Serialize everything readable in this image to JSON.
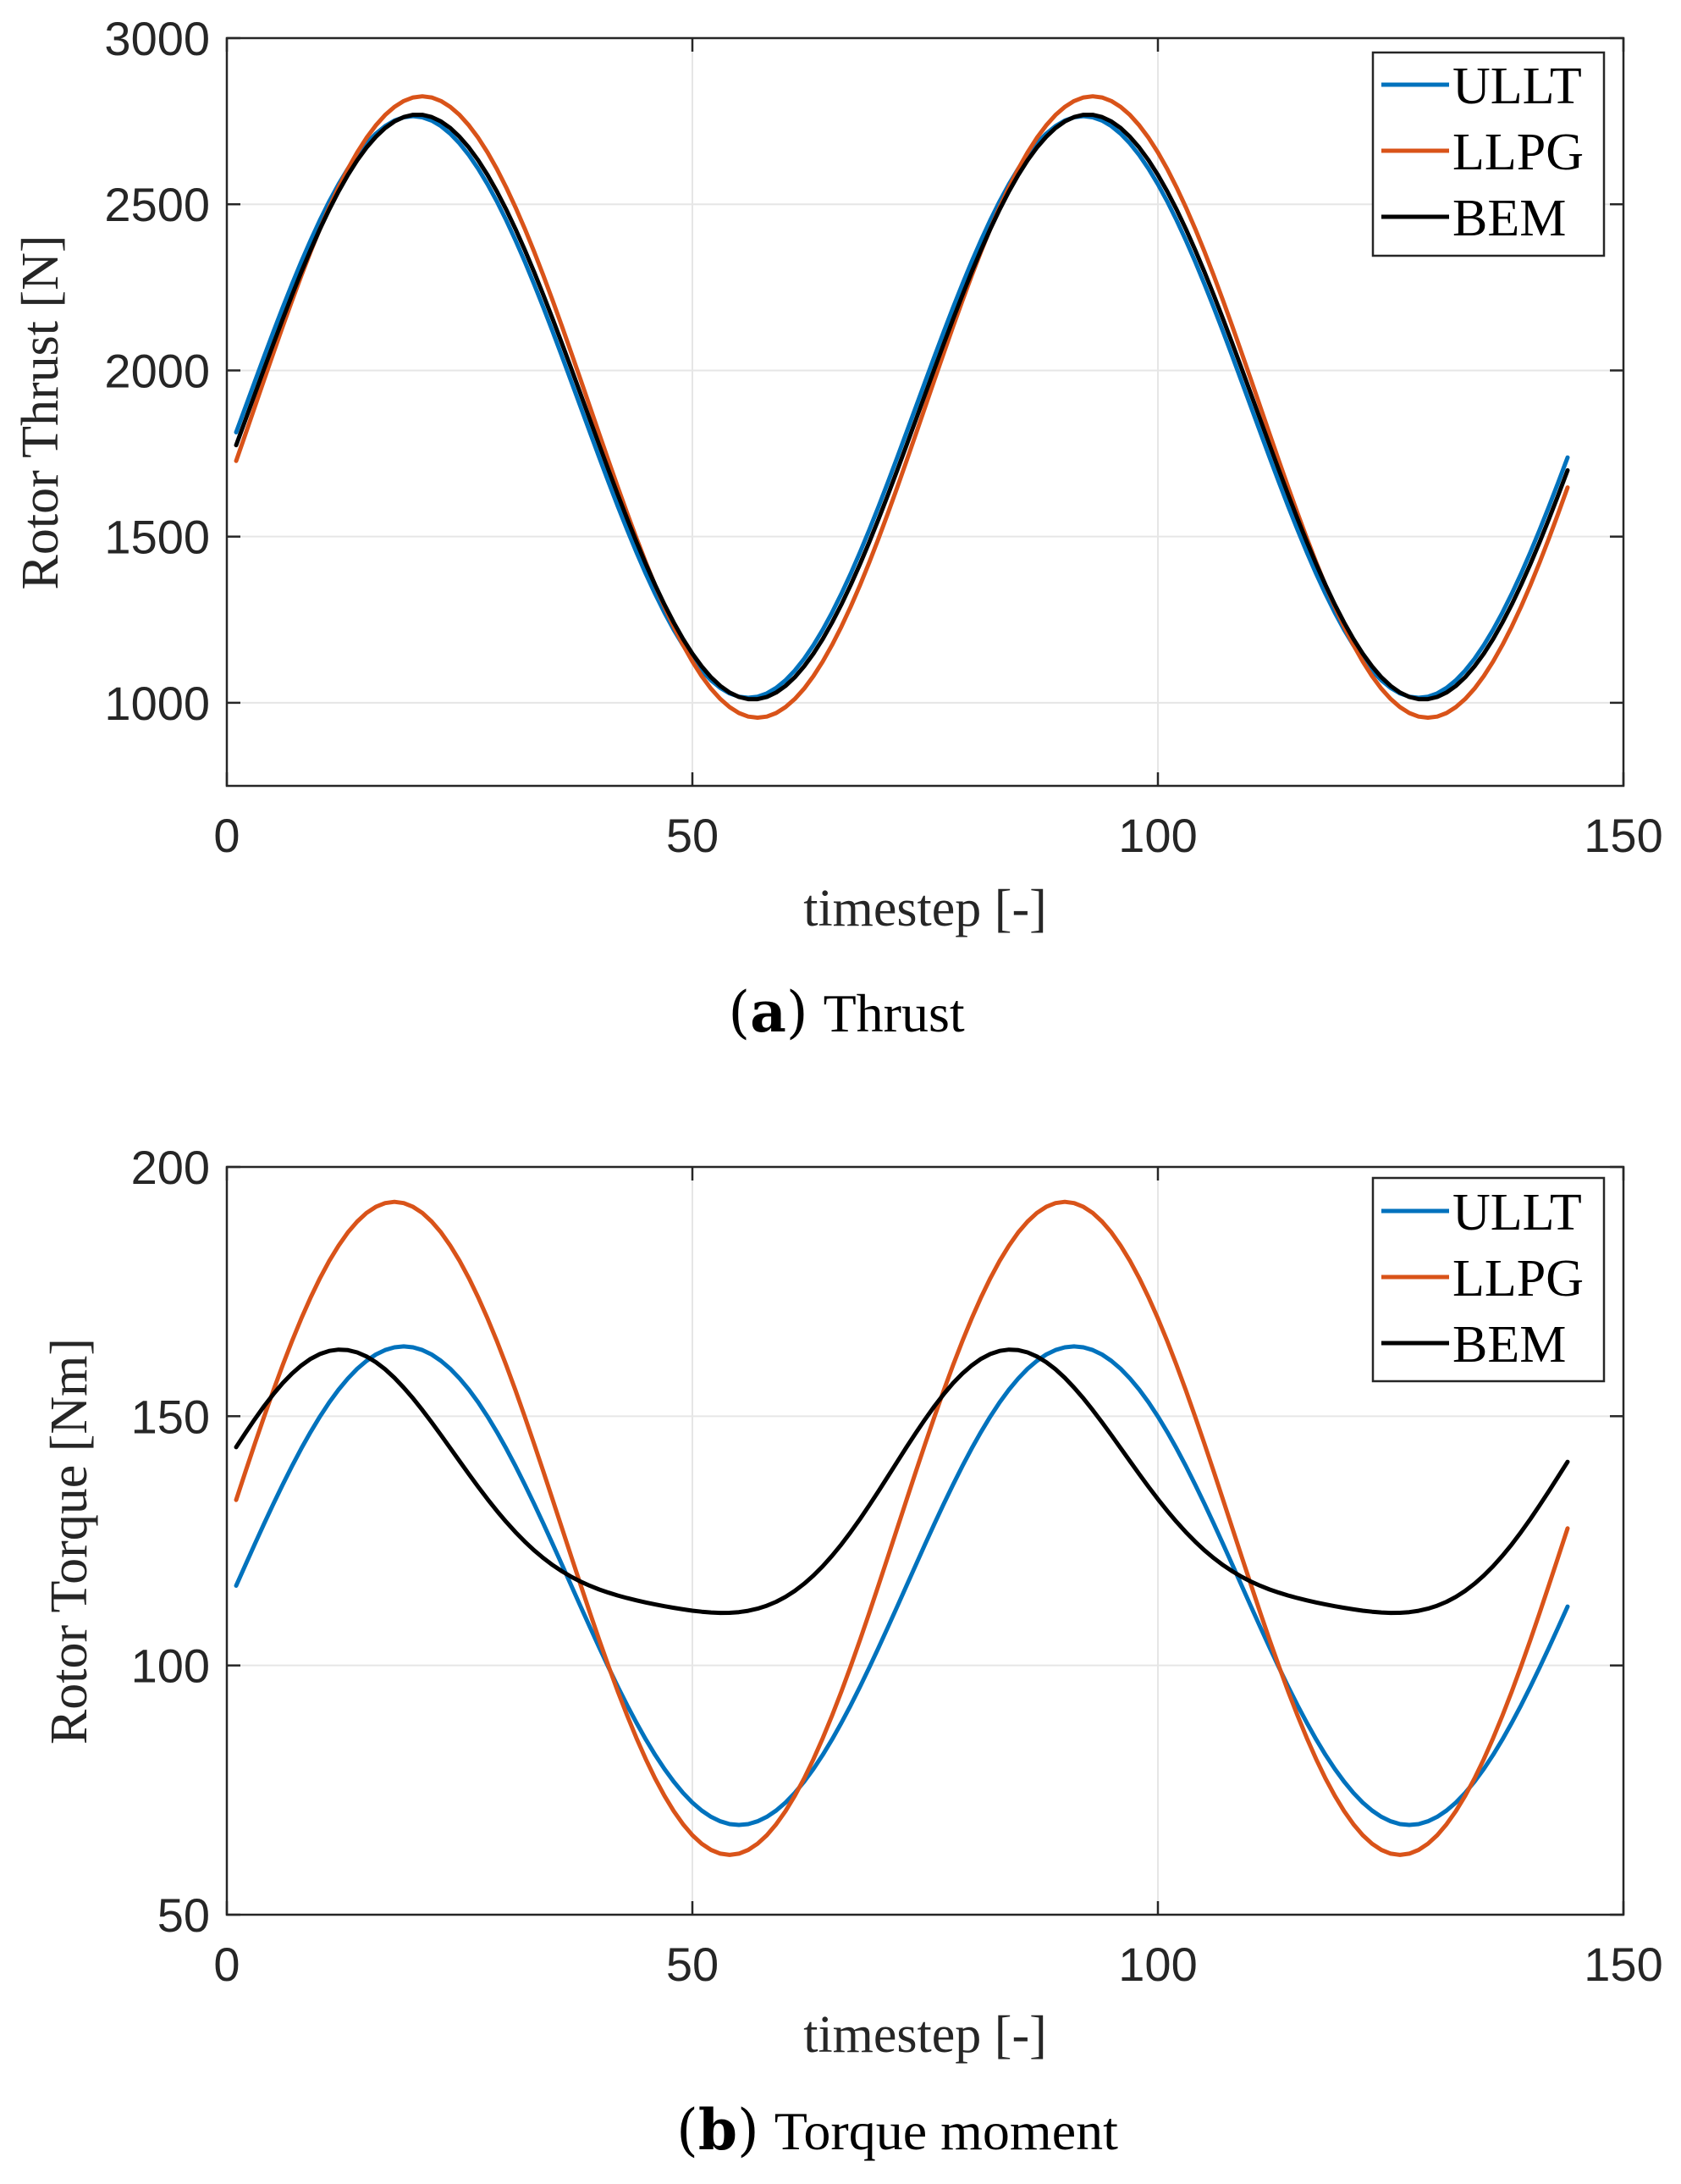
{
  "chart_data": [
    {
      "type": "line",
      "caption": {
        "letter": "a",
        "text": "Thrust"
      },
      "title": "",
      "xlabel": "timestep [-]",
      "ylabel": "Rotor Thrust [N]",
      "xlim": [
        0,
        150
      ],
      "ylim": [
        750,
        3000
      ],
      "xticks": [
        0,
        50,
        100,
        150
      ],
      "yticks": [
        1000,
        1500,
        2000,
        2500,
        3000
      ],
      "grid": true,
      "legend": "top-right",
      "x": {
        "start": 1,
        "end": 144,
        "step": 1
      },
      "series": [
        {
          "name": "ULLT",
          "color": "#0072BD",
          "model": {
            "mean": 1890,
            "amp": 875,
            "period": 72,
            "peak_at": 20,
            "h2_amp": 0,
            "h2_phase": 0
          }
        },
        {
          "name": "LLPG",
          "color": "#D95319",
          "model": {
            "mean": 1890,
            "amp": 935,
            "period": 72,
            "peak_at": 21,
            "h2_amp": 0,
            "h2_phase": 0
          }
        },
        {
          "name": "BEM",
          "color": "#000000",
          "model": {
            "mean": 1890,
            "amp": 880,
            "period": 72,
            "peak_at": 20.5,
            "h2_amp": 0,
            "h2_phase": 0
          }
        }
      ]
    },
    {
      "type": "line",
      "caption": {
        "letter": "b",
        "text": "Torque moment"
      },
      "title": "",
      "xlabel": "timestep [-]",
      "ylabel": "Rotor Torque [Nm]",
      "xlim": [
        0,
        150
      ],
      "ylim": [
        50,
        200
      ],
      "xticks": [
        0,
        50,
        100,
        150
      ],
      "yticks": [
        50,
        100,
        150,
        200
      ],
      "grid": true,
      "legend": "top-right",
      "x": {
        "start": 1,
        "end": 144,
        "step": 1
      },
      "series": [
        {
          "name": "ULLT",
          "color": "#0072BD",
          "model": {
            "mean": 116,
            "amp": 48,
            "period": 72,
            "peak_at": 19,
            "h2_amp": 0,
            "h2_phase": 0
          }
        },
        {
          "name": "LLPG",
          "color": "#D95319",
          "model": {
            "mean": 127.5,
            "amp": 65.5,
            "period": 72,
            "peak_at": 18,
            "h2_amp": 0,
            "h2_phase": 0
          }
        },
        {
          "name": "BEM",
          "color": "#000000",
          "model": {
            "mean": 132,
            "amp": 26,
            "period": 72,
            "peak_at": 13,
            "h2_amp": 5.5,
            "h2_phase": 0.3
          }
        }
      ]
    }
  ]
}
